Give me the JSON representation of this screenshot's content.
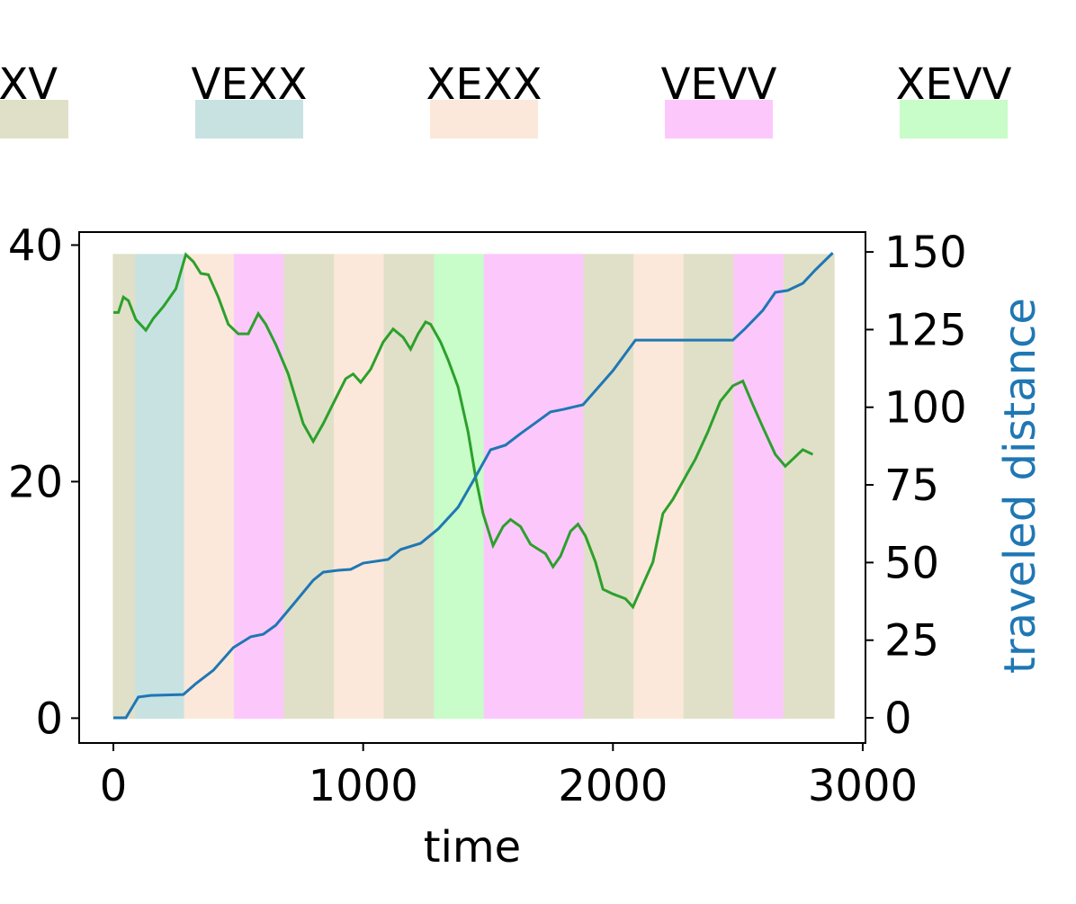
{
  "chart_data": {
    "type": "line",
    "xlabel": "time",
    "y2label": "traveled distance",
    "xlim": [
      -137,
      3011
    ],
    "xticks": [
      0,
      1000,
      2000,
      3000
    ],
    "ylim": [
      -2.1,
      41.1
    ],
    "yticks": [
      0,
      20,
      40
    ],
    "y2lim": [
      -8.1,
      156.4
    ],
    "y2ticks": [
      0,
      25,
      50,
      75,
      100,
      125,
      150
    ],
    "legend": [
      {
        "name": "EXV",
        "color": "#e0e0c8"
      },
      {
        "name": "VEXX",
        "color": "#c8e2e2"
      },
      {
        "name": "XEXX",
        "color": "#fbe8da"
      },
      {
        "name": "VEVV",
        "color": "#fcc8fc"
      },
      {
        "name": "XEVV",
        "color": "#c8fcc8"
      }
    ],
    "regions": {
      "starts": [
        0,
        90,
        285,
        485,
        685,
        885,
        1085,
        1285,
        1485,
        1885,
        2085,
        2285,
        2485,
        2685
      ],
      "ends": [
        90,
        285,
        485,
        685,
        885,
        1085,
        1285,
        1485,
        1885,
        2085,
        2285,
        2485,
        2685,
        2885
      ],
      "kinds": [
        0,
        1,
        2,
        3,
        0,
        2,
        0,
        4,
        3,
        0,
        2,
        0,
        3,
        0
      ],
      "span": [
        0,
        39.2
      ]
    },
    "series": [
      {
        "color": "#2ca02c",
        "x": [
          0,
          20,
          40,
          60,
          90,
          130,
          160,
          200,
          250,
          290,
          320,
          350,
          380,
          420,
          460,
          500,
          540,
          580,
          610,
          650,
          700,
          760,
          800,
          840,
          880,
          930,
          960,
          990,
          1030,
          1080,
          1120,
          1160,
          1190,
          1220,
          1250,
          1270,
          1310,
          1340,
          1380,
          1420,
          1450,
          1480,
          1520,
          1560,
          1590,
          1630,
          1670,
          1700,
          1730,
          1760,
          1790,
          1830,
          1860,
          1890,
          1930,
          1960,
          2000,
          2050,
          2080,
          2120,
          2160,
          2200,
          2240,
          2290,
          2330,
          2380,
          2430,
          2480,
          2520,
          2560,
          2600,
          2650,
          2690,
          2720,
          2760,
          2800
        ],
        "values": [
          34.3,
          34.3,
          35.6,
          35.3,
          33.7,
          32.8,
          33.8,
          34.8,
          36.3,
          39.2,
          38.6,
          37.6,
          37.5,
          35.6,
          33.3,
          32.5,
          32.5,
          34.2,
          33.3,
          31.6,
          29.1,
          24.9,
          23.4,
          24.9,
          26.6,
          28.7,
          29.1,
          28.4,
          29.5,
          31.8,
          32.9,
          32.2,
          31.2,
          32.5,
          33.5,
          33.3,
          31.8,
          30.3,
          28.0,
          24.2,
          20.4,
          17.3,
          14.6,
          16.2,
          16.8,
          16.2,
          14.7,
          14.3,
          13.9,
          12.8,
          13.7,
          15.8,
          16.4,
          15.4,
          13.2,
          10.9,
          10.5,
          10.1,
          9.4,
          11.3,
          13.2,
          17.3,
          18.5,
          20.4,
          21.9,
          24.2,
          26.8,
          28.1,
          28.5,
          26.5,
          24.6,
          22.3,
          21.3,
          21.9,
          22.7,
          22.3
        ]
      },
      {
        "color": "#1f77b4",
        "axis": "y2",
        "x": [
          0,
          50,
          100,
          150,
          280,
          330,
          400,
          480,
          550,
          600,
          650,
          720,
          800,
          840,
          900,
          950,
          1000,
          1100,
          1150,
          1230,
          1300,
          1380,
          1440,
          1510,
          1570,
          1630,
          1680,
          1750,
          1800,
          1880,
          1950,
          2000,
          2090,
          2200,
          2480,
          2530,
          2600,
          2650,
          2700,
          2760,
          2810,
          2880
        ],
        "values": [
          0,
          0,
          6.7,
          7.2,
          7.5,
          11.0,
          15.3,
          22.6,
          26.1,
          26.9,
          29.8,
          36.5,
          44.3,
          46.9,
          47.5,
          47.8,
          49.8,
          51.0,
          54.2,
          56.2,
          60.8,
          67.8,
          76.2,
          86.3,
          87.8,
          91.5,
          94.4,
          98.5,
          99.3,
          100.8,
          107.2,
          111.8,
          121.6,
          121.6,
          121.6,
          125.4,
          131.2,
          137.0,
          137.6,
          139.9,
          144.2,
          149.7
        ]
      }
    ]
  }
}
